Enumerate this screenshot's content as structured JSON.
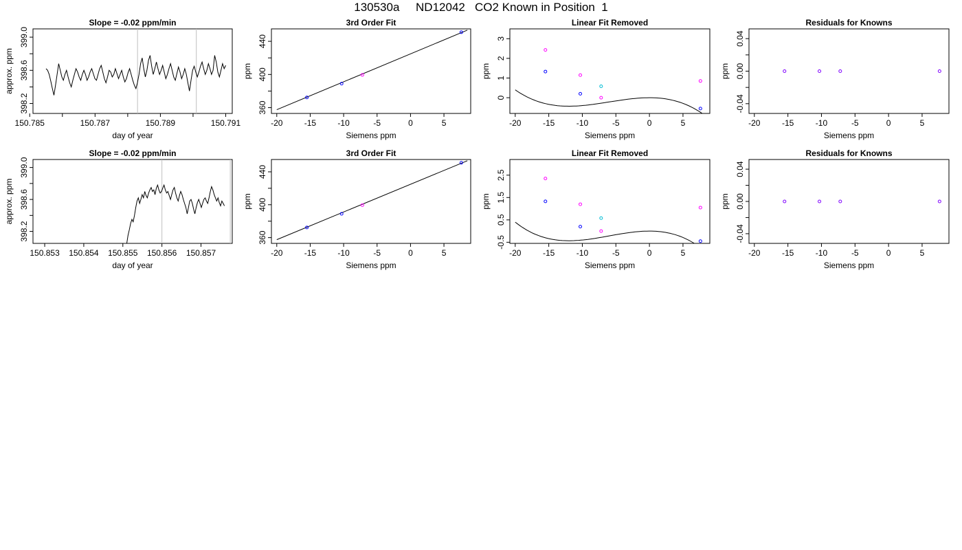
{
  "page": {
    "title": "130530a     ND12042   CO2 Known in Position  1"
  },
  "colors": {
    "axes": "#000000",
    "line": "#000000",
    "vline": "#bebebe",
    "blue": "#0000ff",
    "magenta": "#ff00ff",
    "cyan": "#00bcd4",
    "purple": "#7f00ff"
  },
  "chart_data": [
    {
      "id": "p11",
      "type": "line",
      "title": "Slope =  -0.02  ppm/min",
      "xlabel": "day of year",
      "ylabel": "approx. ppm",
      "xlim": [
        150.7851,
        150.7912
      ],
      "ylim": [
        398.08,
        399.1
      ],
      "xticks": [
        150.785,
        150.786,
        150.787,
        150.788,
        150.789,
        150.79,
        150.791
      ],
      "xticklabels": [
        "150.785",
        "",
        "150.787",
        "",
        "150.789",
        "",
        "150.791"
      ],
      "yticks": [
        398.2,
        398.4,
        398.6,
        398.8,
        399.0
      ],
      "yticklabels": [
        "398.2",
        "",
        "398.6",
        "",
        "399.0"
      ],
      "vlines": [
        150.7883,
        150.7901
      ],
      "series": [
        {
          "style": "line",
          "color": "#000000",
          "x_start": 150.7855,
          "x_end": 150.791,
          "values": [
            398.62,
            398.6,
            398.55,
            398.47,
            398.38,
            398.3,
            398.42,
            398.55,
            398.68,
            398.6,
            398.52,
            398.48,
            398.55,
            398.6,
            398.52,
            398.45,
            398.4,
            398.48,
            398.55,
            398.62,
            398.58,
            398.52,
            398.48,
            398.55,
            398.6,
            398.55,
            398.48,
            398.52,
            398.58,
            398.62,
            398.56,
            398.5,
            398.48,
            398.55,
            398.62,
            398.66,
            398.58,
            398.5,
            398.45,
            398.52,
            398.6,
            398.58,
            398.52,
            398.55,
            398.62,
            398.56,
            398.5,
            398.55,
            398.6,
            398.52,
            398.46,
            398.5,
            398.57,
            398.62,
            398.55,
            398.48,
            398.42,
            398.38,
            398.45,
            398.55,
            398.68,
            398.75,
            398.62,
            398.52,
            398.6,
            398.72,
            398.78,
            398.65,
            398.55,
            398.62,
            398.7,
            398.62,
            398.55,
            398.6,
            398.66,
            398.58,
            398.5,
            398.55,
            398.62,
            398.68,
            398.6,
            398.52,
            398.48,
            398.56,
            398.64,
            398.58,
            398.5,
            398.55,
            398.62,
            398.55,
            398.45,
            398.35,
            398.48,
            398.6,
            398.65,
            398.58,
            398.52,
            398.58,
            398.65,
            398.7,
            398.62,
            398.55,
            398.6,
            398.68,
            398.62,
            398.55,
            398.6,
            398.78,
            398.7,
            398.58,
            398.52,
            398.6,
            398.68,
            398.62,
            398.66
          ]
        }
      ]
    },
    {
      "id": "p12",
      "type": "scatter",
      "title": "3rd Order Fit",
      "xlabel": "Siemens ppm",
      "ylabel": "ppm",
      "xlim": [
        -20.8,
        9.0
      ],
      "ylim": [
        353,
        455
      ],
      "xticks": [
        -20,
        -15,
        -10,
        -5,
        0,
        5
      ],
      "xticklabels": [
        "-20",
        "-15",
        "-10",
        "-5",
        "0",
        "5"
      ],
      "yticks": [
        360,
        380,
        400,
        420,
        440
      ],
      "yticklabels": [
        "360",
        "",
        "400",
        "",
        "440"
      ],
      "curve": {
        "x": [
          -20,
          8.5
        ],
        "y": [
          357.5,
          453.5
        ]
      },
      "points": [
        {
          "x": -15.5,
          "y": 372.3,
          "color": "#0000ff"
        },
        {
          "x": -10.3,
          "y": 389.0,
          "color": "#0000ff"
        },
        {
          "x": -7.2,
          "y": 399.5,
          "color": "#ff00ff"
        },
        {
          "x": 7.6,
          "y": 451.0,
          "color": "#0000ff"
        }
      ]
    },
    {
      "id": "p13",
      "type": "scatter",
      "title": "Linear Fit Removed",
      "xlabel": "Siemens ppm",
      "ylabel": "ppm",
      "xlim": [
        -20.8,
        9.0
      ],
      "ylim": [
        -0.8,
        3.5
      ],
      "xticks": [
        -20,
        -15,
        -10,
        -5,
        0,
        5
      ],
      "xticklabels": [
        "-20",
        "-15",
        "-10",
        "-5",
        "0",
        "5"
      ],
      "yticks": [
        0,
        1,
        2,
        3
      ],
      "yticklabels": [
        "0",
        "1",
        "2",
        "3"
      ],
      "curve": {
        "coef": [
          0,
          0,
          -0.009,
          -0.0005
        ],
        "xrange": [
          -20,
          8
        ]
      },
      "points": [
        {
          "x": -15.5,
          "y": 2.43,
          "color": "#ff00ff"
        },
        {
          "x": -15.5,
          "y": 1.33,
          "color": "#0000ff"
        },
        {
          "x": -10.3,
          "y": 1.15,
          "color": "#ff00ff"
        },
        {
          "x": -10.3,
          "y": 0.2,
          "color": "#0000ff"
        },
        {
          "x": -7.2,
          "y": 0.58,
          "color": "#00bcd4"
        },
        {
          "x": -7.2,
          "y": 0.0,
          "color": "#ff00ff"
        },
        {
          "x": 7.6,
          "y": 0.85,
          "color": "#ff00ff"
        },
        {
          "x": 7.6,
          "y": -0.55,
          "color": "#0000ff"
        }
      ]
    },
    {
      "id": "p14",
      "type": "scatter",
      "title": "Residuals for Knowns",
      "xlabel": "Siemens ppm",
      "ylabel": "ppm",
      "xlim": [
        -20.8,
        9.0
      ],
      "ylim": [
        -0.052,
        0.052
      ],
      "xticks": [
        -20,
        -15,
        -10,
        -5,
        0,
        5
      ],
      "xticklabels": [
        "-20",
        "-15",
        "-10",
        "-5",
        "0",
        "5"
      ],
      "yticks": [
        -0.04,
        -0.02,
        0.0,
        0.02,
        0.04
      ],
      "yticklabels": [
        "-0.04",
        "",
        "0.00",
        "",
        "0.04"
      ],
      "points": [
        {
          "x": -15.5,
          "y": 0.0,
          "color": "#7f00ff"
        },
        {
          "x": -10.3,
          "y": 0.0,
          "color": "#7f00ff"
        },
        {
          "x": -7.2,
          "y": 0.0,
          "color": "#7f00ff"
        },
        {
          "x": 7.6,
          "y": 0.0,
          "color": "#7f00ff"
        }
      ]
    },
    {
      "id": "p21",
      "type": "line",
      "title": "Slope =  -0.02  ppm/min",
      "xlabel": "day of year",
      "ylabel": "approx. ppm",
      "xlim": [
        150.8527,
        150.8578
      ],
      "ylim": [
        398.05,
        399.1
      ],
      "xticks": [
        150.853,
        150.854,
        150.855,
        150.856,
        150.857
      ],
      "xticklabels": [
        "150.853",
        "150.854",
        "150.855",
        "150.856",
        "150.857"
      ],
      "yticks": [
        398.2,
        398.4,
        398.6,
        398.8,
        399.0
      ],
      "yticklabels": [
        "398.2",
        "",
        "398.6",
        "",
        "399.0"
      ],
      "vlines": [
        150.856,
        150.85775
      ],
      "series": [
        {
          "style": "line",
          "color": "#000000",
          "x_start": 150.8551,
          "x_end": 150.8576,
          "values": [
            398.05,
            398.15,
            398.22,
            398.3,
            398.35,
            398.32,
            398.4,
            398.5,
            398.58,
            398.62,
            398.55,
            398.6,
            398.66,
            398.62,
            398.7,
            398.65,
            398.62,
            398.68,
            398.72,
            398.75,
            398.7,
            398.72,
            398.66,
            398.74,
            398.78,
            398.72,
            398.68,
            398.7,
            398.74,
            398.78,
            398.72,
            398.68,
            398.7,
            398.65,
            398.6,
            398.66,
            398.72,
            398.75,
            398.68,
            398.62,
            398.58,
            398.65,
            398.7,
            398.66,
            398.6,
            398.55,
            398.5,
            398.42,
            398.5,
            398.58,
            398.6,
            398.55,
            398.48,
            398.42,
            398.5,
            398.56,
            398.6,
            398.55,
            398.5,
            398.55,
            398.6,
            398.62,
            398.58,
            398.55,
            398.62,
            398.7,
            398.76,
            398.72,
            398.66,
            398.62,
            398.58,
            398.62,
            398.56,
            398.52,
            398.58,
            398.55,
            398.52
          ]
        }
      ]
    },
    {
      "id": "p22",
      "type": "scatter",
      "title": "3rd Order Fit",
      "xlabel": "Siemens ppm",
      "ylabel": "ppm",
      "xlim": [
        -20.8,
        9.0
      ],
      "ylim": [
        353,
        455
      ],
      "xticks": [
        -20,
        -15,
        -10,
        -5,
        0,
        5
      ],
      "xticklabels": [
        "-20",
        "-15",
        "-10",
        "-5",
        "0",
        "5"
      ],
      "yticks": [
        360,
        380,
        400,
        420,
        440
      ],
      "yticklabels": [
        "360",
        "",
        "400",
        "",
        "440"
      ],
      "curve": {
        "x": [
          -20,
          8.5
        ],
        "y": [
          357.5,
          453.5
        ]
      },
      "points": [
        {
          "x": -15.5,
          "y": 372.3,
          "color": "#0000ff"
        },
        {
          "x": -10.3,
          "y": 389.0,
          "color": "#0000ff"
        },
        {
          "x": -7.2,
          "y": 399.5,
          "color": "#ff00ff"
        },
        {
          "x": 7.6,
          "y": 451.0,
          "color": "#0000ff"
        }
      ]
    },
    {
      "id": "p23",
      "type": "scatter",
      "title": "Linear Fit Removed",
      "xlabel": "Siemens ppm",
      "ylabel": "ppm",
      "xlim": [
        -20.8,
        9.0
      ],
      "ylim": [
        -0.55,
        3.2
      ],
      "xticks": [
        -20,
        -15,
        -10,
        -5,
        0,
        5
      ],
      "xticklabels": [
        "-20",
        "-15",
        "-10",
        "-5",
        "0",
        "5"
      ],
      "yticks": [
        -0.5,
        0.5,
        1.5,
        2.5
      ],
      "yticklabels": [
        "-0.5",
        "0.5",
        "1.5",
        "2.5"
      ],
      "curve": {
        "coef": [
          0,
          0,
          -0.009,
          -0.0005
        ],
        "xrange": [
          -20,
          8
        ]
      },
      "points": [
        {
          "x": -15.5,
          "y": 2.35,
          "color": "#ff00ff"
        },
        {
          "x": -15.5,
          "y": 1.33,
          "color": "#0000ff"
        },
        {
          "x": -10.3,
          "y": 1.2,
          "color": "#ff00ff"
        },
        {
          "x": -10.3,
          "y": 0.2,
          "color": "#0000ff"
        },
        {
          "x": -7.2,
          "y": 0.58,
          "color": "#00bcd4"
        },
        {
          "x": -7.2,
          "y": 0.0,
          "color": "#ff00ff"
        },
        {
          "x": 7.6,
          "y": 1.05,
          "color": "#ff00ff"
        },
        {
          "x": 7.6,
          "y": -0.45,
          "color": "#0000ff"
        }
      ]
    },
    {
      "id": "p24",
      "type": "scatter",
      "title": "Residuals for Knowns",
      "xlabel": "Siemens ppm",
      "ylabel": "ppm",
      "xlim": [
        -20.8,
        9.0
      ],
      "ylim": [
        -0.052,
        0.052
      ],
      "xticks": [
        -20,
        -15,
        -10,
        -5,
        0,
        5
      ],
      "xticklabels": [
        "-20",
        "-15",
        "-10",
        "-5",
        "0",
        "5"
      ],
      "yticks": [
        -0.04,
        -0.02,
        0.0,
        0.02,
        0.04
      ],
      "yticklabels": [
        "-0.04",
        "",
        "0.00",
        "",
        "0.04"
      ],
      "points": [
        {
          "x": -15.5,
          "y": 0.0,
          "color": "#7f00ff"
        },
        {
          "x": -10.3,
          "y": 0.0,
          "color": "#7f00ff"
        },
        {
          "x": -7.2,
          "y": 0.0,
          "color": "#7f00ff"
        },
        {
          "x": 7.6,
          "y": 0.0,
          "color": "#7f00ff"
        }
      ]
    }
  ]
}
